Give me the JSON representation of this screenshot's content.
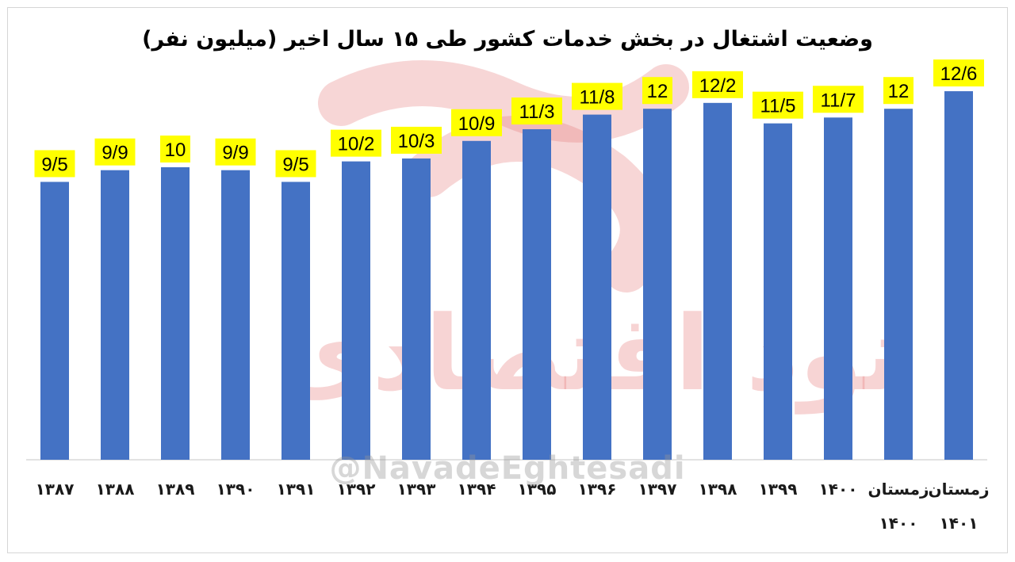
{
  "chart_data": {
    "type": "bar",
    "title": "وضعیت اشتغال در بخش خدمات کشور طی ۱۵ سال اخیر (میلیون نفر)",
    "categories": [
      "۱۳۸۷",
      "۱۳۸۸",
      "۱۳۸۹",
      "۱۳۹۰",
      "۱۳۹۱",
      "۱۳۹۲",
      "۱۳۹۳",
      "۱۳۹۴",
      "۱۳۹۵",
      "۱۳۹۶",
      "۱۳۹۷",
      "۱۳۹۸",
      "۱۳۹۹",
      "۱۴۰۰",
      "زمستان ۱۴۰۰",
      "زمستان ۱۴۰۱"
    ],
    "values": [
      9.5,
      9.9,
      10,
      9.9,
      9.5,
      10.2,
      10.3,
      10.9,
      11.3,
      11.8,
      12,
      12.2,
      11.5,
      11.7,
      12,
      12.6
    ],
    "data_labels": [
      "9/5",
      "9/9",
      "10",
      "9/9",
      "9/5",
      "10/2",
      "10/3",
      "10/9",
      "11/3",
      "11/8",
      "12",
      "12/2",
      "11/5",
      "11/7",
      "12",
      "12/6"
    ],
    "ylim": [
      0,
      13.5
    ],
    "grid": false,
    "legend": "none",
    "colors": {
      "bar": "#4472c4",
      "label_bg": "#ffff00",
      "axis": "#d9d9d9"
    }
  },
  "watermark": {
    "brand_text": "نود اقتصادی",
    "handle": "@NavadeEghtesadi"
  }
}
